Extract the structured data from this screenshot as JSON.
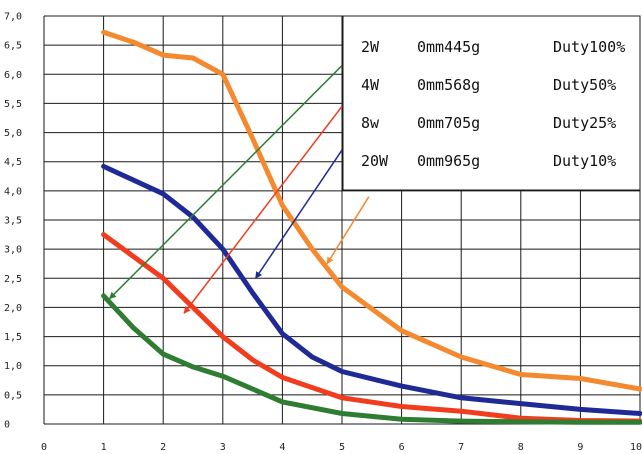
{
  "chart_data": {
    "type": "line",
    "xlim": [
      0,
      10
    ],
    "ylim": [
      0,
      7
    ],
    "x_ticks": [
      "0",
      "1",
      "2",
      "3",
      "4",
      "5",
      "6",
      "7",
      "8",
      "9",
      "10"
    ],
    "y_ticks": [
      "0",
      "0,5",
      "1,0",
      "1,5",
      "2,0",
      "2,5",
      "3,0",
      "3,5",
      "4,0",
      "4,5",
      "5,0",
      "5,5",
      "6,0",
      "6,5",
      "7,0"
    ],
    "grid": true,
    "legend_position": "top-right",
    "legend": [
      {
        "power": "2W",
        "spec": "0mm445g",
        "duty": "Duty100%"
      },
      {
        "power": "4W",
        "spec": "0mm568g",
        "duty": "Duty50%"
      },
      {
        "power": "8w",
        "spec": "0mm705g",
        "duty": "Duty25%"
      },
      {
        "power": "20W",
        "spec": "0mm965g",
        "duty": "Duty10%"
      }
    ],
    "series": [
      {
        "color": "#f4892f",
        "x": [
          1,
          1.5,
          2,
          2.5,
          3,
          3.5,
          4,
          4.5,
          5,
          6,
          7,
          8,
          9,
          10
        ],
        "y": [
          6.72,
          6.55,
          6.33,
          6.28,
          6.0,
          4.9,
          3.75,
          3.0,
          2.35,
          1.6,
          1.15,
          0.85,
          0.78,
          0.6
        ]
      },
      {
        "color": "#1f2a96",
        "x": [
          1,
          2,
          2.5,
          3,
          3.5,
          4,
          4.5,
          5,
          6,
          7,
          8,
          9,
          10
        ],
        "y": [
          4.42,
          3.95,
          3.55,
          3.0,
          2.25,
          1.55,
          1.15,
          0.9,
          0.65,
          0.45,
          0.35,
          0.25,
          0.18
        ]
      },
      {
        "color": "#f23c1e",
        "x": [
          1,
          2,
          2.5,
          3,
          3.5,
          4,
          5,
          6,
          7,
          8,
          9,
          10
        ],
        "y": [
          3.25,
          2.5,
          2.0,
          1.5,
          1.1,
          0.8,
          0.45,
          0.3,
          0.22,
          0.1,
          0.06,
          0.05
        ]
      },
      {
        "color": "#2e7d32",
        "x": [
          1,
          1.5,
          2,
          2.5,
          3,
          3.5,
          4,
          5,
          6,
          7,
          8,
          9,
          10
        ],
        "y": [
          2.2,
          1.65,
          1.2,
          0.98,
          0.82,
          0.6,
          0.38,
          0.18,
          0.08,
          0.05,
          0.04,
          0.03,
          0.03
        ]
      }
    ],
    "arrows": [
      {
        "color": "#2e7d32",
        "from": [
          5.0,
          6.15
        ],
        "to": [
          1.1,
          2.15
        ]
      },
      {
        "color": "#f23c1e",
        "from": [
          5.0,
          5.45
        ],
        "to": [
          2.35,
          1.9
        ]
      },
      {
        "color": "#1f2a96",
        "from": [
          5.0,
          4.7
        ],
        "to": [
          3.55,
          2.5
        ]
      },
      {
        "color": "#f4892f",
        "from": [
          5.45,
          3.9
        ],
        "to": [
          4.75,
          2.75
        ]
      }
    ]
  }
}
